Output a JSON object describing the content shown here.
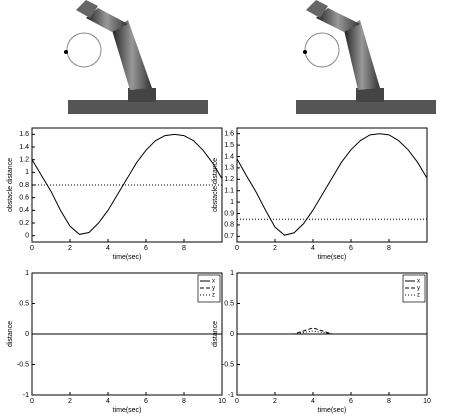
{
  "chart_data": [
    {
      "type": "line",
      "x_label": "time(sec)",
      "y_label": "obstacle distance",
      "x": [
        0,
        0.5,
        1,
        1.5,
        2,
        2.5,
        3,
        3.5,
        4,
        4.5,
        5,
        5.5,
        6,
        6.5,
        7,
        7.5,
        8,
        8.5,
        9,
        9.5,
        10
      ],
      "values": [
        1.2,
        0.95,
        0.7,
        0.4,
        0.15,
        0.02,
        0.05,
        0.2,
        0.4,
        0.65,
        0.9,
        1.15,
        1.35,
        1.5,
        1.58,
        1.6,
        1.58,
        1.5,
        1.35,
        1.15,
        0.9
      ],
      "color": "#000000",
      "threshold": 0.8,
      "xlim": [
        0,
        10
      ],
      "ylim": [
        -0.1,
        1.7
      ],
      "xticks": [
        0,
        2,
        4,
        6,
        8
      ],
      "yticks": [
        0,
        0.2,
        0.4,
        0.6,
        0.8,
        1,
        1.2,
        1.4,
        1.6
      ]
    },
    {
      "type": "line",
      "x_label": "time(sec)",
      "y_label": "obstacle distance",
      "x": [
        0,
        0.5,
        1,
        1.5,
        2,
        2.5,
        3,
        3.5,
        4,
        4.5,
        5,
        5.5,
        6,
        6.5,
        7,
        7.5,
        8,
        8.5,
        9,
        9.5,
        10
      ],
      "values": [
        1.38,
        1.23,
        1.09,
        0.93,
        0.78,
        0.71,
        0.73,
        0.81,
        0.93,
        1.07,
        1.21,
        1.35,
        1.46,
        1.54,
        1.59,
        1.6,
        1.59,
        1.54,
        1.46,
        1.35,
        1.21
      ],
      "color": "#000000",
      "threshold": 0.85,
      "xlim": [
        0,
        10
      ],
      "ylim": [
        0.65,
        1.65
      ],
      "xticks": [
        0,
        2,
        4,
        6,
        8
      ],
      "yticks": [
        0.7,
        0.8,
        0.9,
        1,
        1.1,
        1.2,
        1.3,
        1.4,
        1.5,
        1.6
      ]
    },
    {
      "type": "line",
      "x_label": "time(sec)",
      "y_label": "distance",
      "x": [
        0,
        1,
        2,
        3,
        4,
        5,
        6,
        7,
        8,
        9,
        10
      ],
      "series": [
        {
          "name": "x",
          "color": "#000000",
          "style": "solid",
          "values": [
            0,
            0,
            0,
            0,
            0,
            0,
            0,
            0,
            0,
            0,
            0
          ]
        },
        {
          "name": "y",
          "color": "#000000",
          "style": "dashed",
          "values": [
            0,
            0,
            0,
            0,
            0,
            0,
            0,
            0,
            0,
            0,
            0
          ]
        },
        {
          "name": "z",
          "color": "#000000",
          "style": "dotted",
          "values": [
            0,
            0,
            0,
            0,
            0,
            0,
            0,
            0,
            0,
            0,
            0
          ]
        }
      ],
      "legend": "upper right",
      "xlim": [
        0,
        10
      ],
      "ylim": [
        -1,
        1
      ],
      "xticks": [
        0,
        2,
        4,
        6,
        8,
        10
      ],
      "yticks": [
        -1,
        -0.5,
        0,
        0.5,
        1
      ]
    },
    {
      "type": "line",
      "x_label": "time(sec)",
      "y_label": "distance",
      "x": [
        0,
        1,
        2,
        3,
        4,
        5,
        6,
        7,
        8,
        9,
        10
      ],
      "series": [
        {
          "name": "x",
          "color": "#000000",
          "style": "solid",
          "values": [
            0,
            0,
            0,
            0,
            0,
            0,
            0,
            0,
            0,
            0,
            0
          ]
        },
        {
          "name": "y",
          "color": "#000000",
          "style": "dashed",
          "values": [
            0,
            0,
            0,
            0,
            0.1,
            0,
            0,
            0,
            0,
            0,
            0
          ]
        },
        {
          "name": "z",
          "color": "#000000",
          "style": "dotted",
          "values": [
            0,
            0,
            0,
            0,
            0.05,
            0,
            0,
            0,
            0,
            0,
            0
          ]
        }
      ],
      "legend": "upper right",
      "xlim": [
        0,
        10
      ],
      "ylim": [
        -1,
        1
      ],
      "xticks": [
        0,
        2,
        4,
        6,
        8,
        10
      ],
      "yticks": [
        -1,
        -0.5,
        0,
        0.5,
        1
      ]
    }
  ]
}
